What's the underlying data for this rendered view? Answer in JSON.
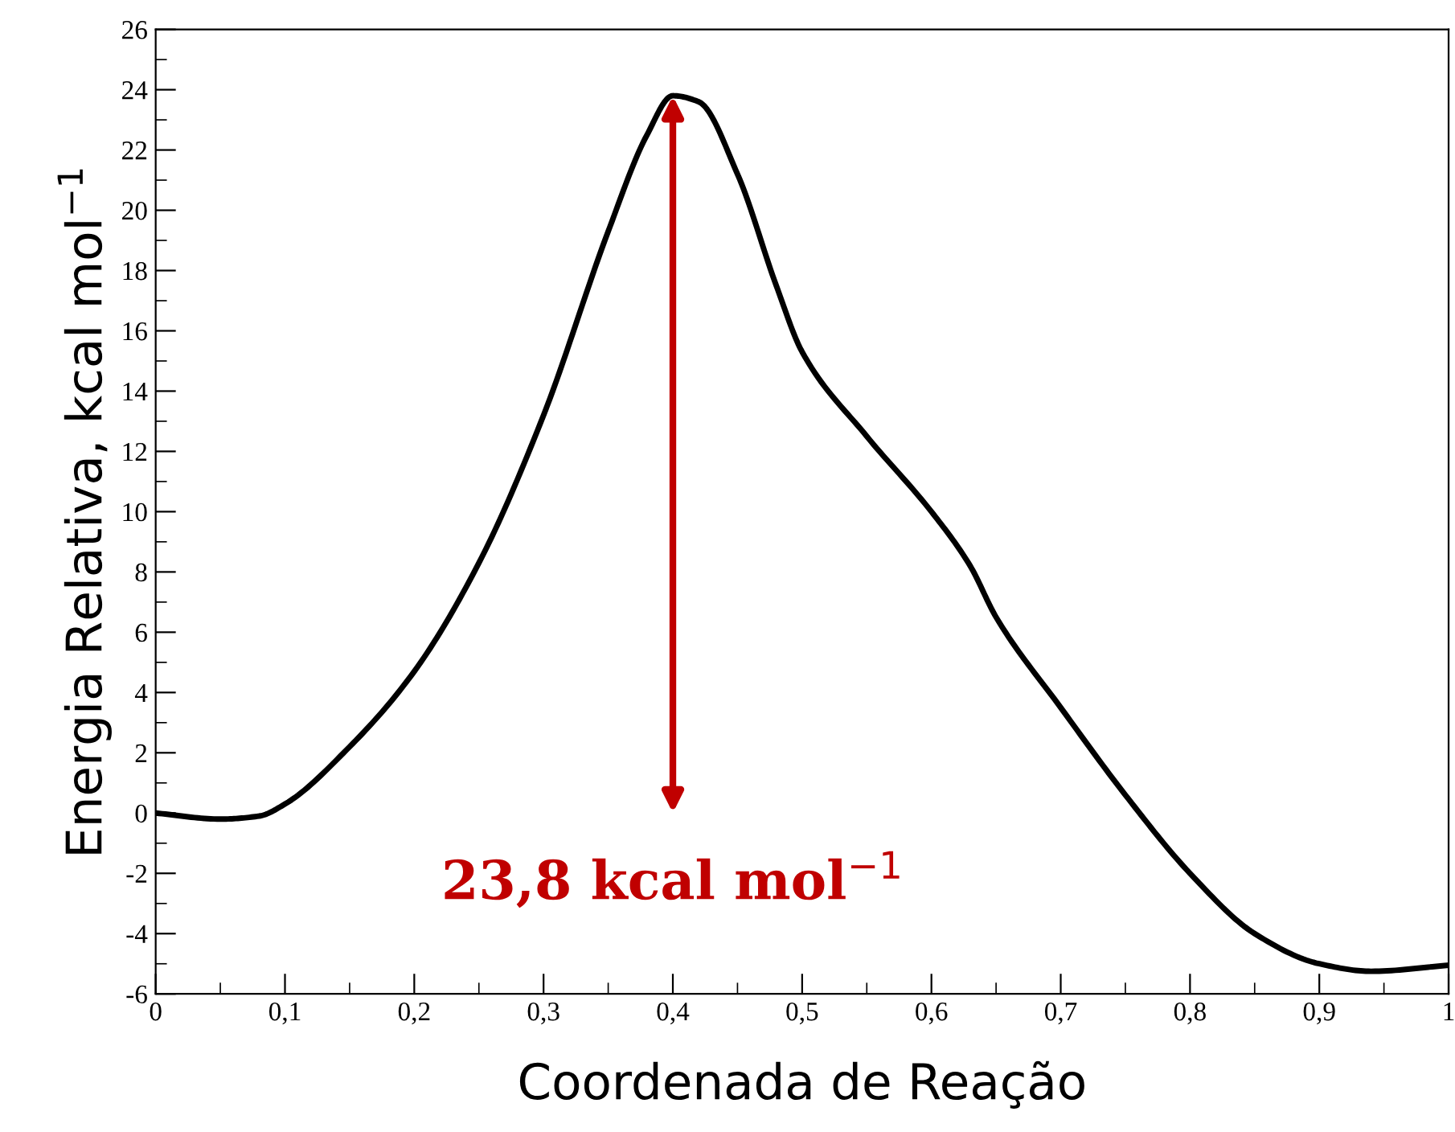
{
  "chart_data": {
    "type": "line",
    "xlabel": "Coordenada de Reação",
    "ylabel": "Energia Relativa, kcal mol$^{−1}$",
    "x": [
      0,
      0.05,
      0.08,
      0.1,
      0.15,
      0.2,
      0.25,
      0.3,
      0.35,
      0.38,
      0.4,
      0.42,
      0.45,
      0.48,
      0.5,
      0.55,
      0.6,
      0.63,
      0.65,
      0.7,
      0.75,
      0.8,
      0.85,
      0.9,
      0.94,
      1.0
    ],
    "series": [
      {
        "color": "#000000",
        "values": [
          0,
          -0.2,
          -0.1,
          0.3,
          2.2,
          4.7,
          8.3,
          13.2,
          19.3,
          22.5,
          23.8,
          23.6,
          21.2,
          17.5,
          15.3,
          12.5,
          10.0,
          8.2,
          6.5,
          3.5,
          0.6,
          -2.0,
          -4.0,
          -5.0,
          -5.25,
          -5.05
        ]
      }
    ],
    "xlim": [
      0,
      1
    ],
    "ylim": [
      -6,
      26
    ],
    "xticks": [
      0,
      {
        "value": 0.1,
        "label": "0,1"
      },
      {
        "value": 0.2,
        "label": "0,2"
      },
      {
        "value": 0.3,
        "label": "0,3"
      },
      {
        "value": 0.4,
        "label": "0,4"
      },
      {
        "value": 0.5,
        "label": "0,5"
      },
      {
        "value": 0.6,
        "label": "0,6"
      },
      {
        "value": 0.7,
        "label": "0,7"
      },
      {
        "value": 0.8,
        "label": "0,8"
      },
      {
        "value": 0.9,
        "label": "0,9"
      },
      1
    ],
    "yticks": [
      -6,
      -4,
      -2,
      0,
      2,
      4,
      6,
      8,
      10,
      12,
      14,
      16,
      18,
      20,
      22,
      24,
      26
    ],
    "annotations": [
      {
        "text": "23,8 kcal mol$^{−1}$",
        "x": 0.4,
        "y": 23.8
      }
    ],
    "grid": false,
    "legend": false,
    "marker": "none",
    "line_style": "solid"
  }
}
